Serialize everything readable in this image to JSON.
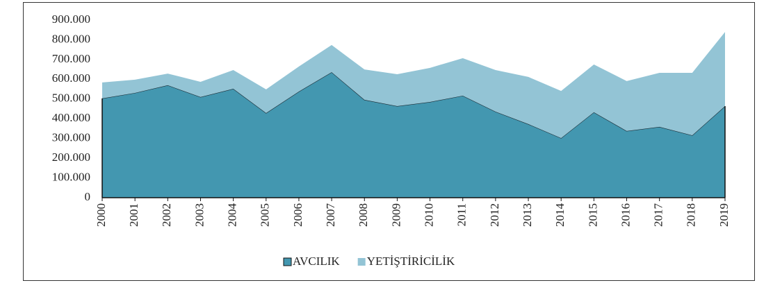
{
  "chart_data": {
    "type": "stacked-area",
    "categories": [
      "2000",
      "2001",
      "2002",
      "2003",
      "2004",
      "2005",
      "2006",
      "2007",
      "2008",
      "2009",
      "2010",
      "2011",
      "2012",
      "2013",
      "2014",
      "2015",
      "2016",
      "2017",
      "2018",
      "2019"
    ],
    "series": [
      {
        "name": "AVCILIK",
        "color": "#4397b0",
        "values": [
          503000,
          531000,
          570000,
          510000,
          552000,
          429000,
          538000,
          636000,
          496000,
          464000,
          485000,
          517000,
          436000,
          373000,
          302000,
          433000,
          338000,
          359000,
          316000,
          464000
        ]
      },
      {
        "name": "YETİŞTİRİCİLİK",
        "color": "#93c4d5",
        "values": [
          81000,
          67000,
          59000,
          77000,
          95000,
          120000,
          127000,
          138000,
          154000,
          162000,
          173000,
          190000,
          211000,
          239000,
          239000,
          242000,
          253000,
          274000,
          317000,
          376000
        ]
      }
    ],
    "ylim": [
      0,
      900000
    ],
    "yticks": [
      0,
      {
        "value": 100000,
        "label": "100.000"
      },
      {
        "value": 200000,
        "label": "200.000"
      },
      {
        "value": 300000,
        "label": "300.000"
      },
      {
        "value": 400000,
        "label": "400.000"
      },
      {
        "value": 500000,
        "label": "500.000"
      },
      {
        "value": 600000,
        "label": "600.000"
      },
      {
        "value": 700000,
        "label": "700.000"
      },
      {
        "value": 800000,
        "label": "800.000"
      },
      {
        "value": 900000,
        "label": "900.000"
      }
    ],
    "legend": "bottom"
  }
}
